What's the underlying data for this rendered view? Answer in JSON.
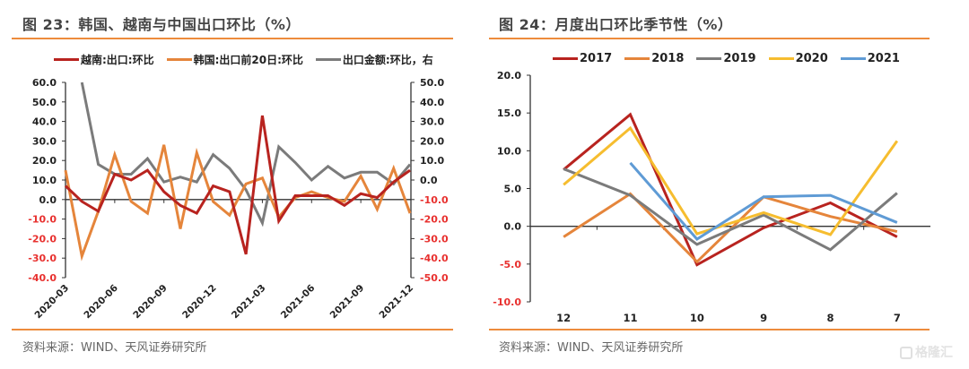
{
  "left": {
    "title": "图 23：韩国、越南与中国出口环比（%）",
    "source": "资料来源：WIND、天风证券研究所"
  },
  "right": {
    "title": "图 24：月度出口环比季节性（%）",
    "source": "资料来源：WIND、天风证券研究所"
  },
  "watermark": {
    "icon": "gelonghui-logo-icon",
    "text": "格隆汇"
  },
  "chart_data": [
    {
      "type": "line",
      "title": "图 23：韩国、越南与中国出口环比（%）",
      "xlabel": "",
      "ylabel": "",
      "x": [
        "2020-03",
        "2020-04",
        "2020-05",
        "2020-06",
        "2020-07",
        "2020-08",
        "2020-09",
        "2020-10",
        "2020-11",
        "2020-12",
        "2021-01",
        "2021-02",
        "2021-03",
        "2021-04",
        "2021-05",
        "2021-06",
        "2021-07",
        "2021-08",
        "2021-09",
        "2021-10",
        "2021-11",
        "2021-12"
      ],
      "x_tick_labels": [
        "2020-03",
        "2020-06",
        "2020-09",
        "2020-12",
        "2021-03",
        "2021-06",
        "2021-09",
        "2021-12"
      ],
      "ylim": [
        -40,
        60
      ],
      "y_ticks": [
        60,
        50,
        40,
        30,
        20,
        10,
        0,
        -10,
        -20,
        -30,
        -40
      ],
      "y_tick_labels": [
        "60.0",
        "50.0",
        "40.0",
        "30.0",
        "20.0",
        "10.0",
        "0.0",
        "-10.0",
        "-20.0",
        "-30.0",
        "-40.0"
      ],
      "y2lim": [
        -50,
        50
      ],
      "y2_ticks": [
        50,
        40,
        30,
        20,
        10,
        0,
        -10,
        -20,
        -30,
        -40,
        -50
      ],
      "y2_tick_labels": [
        "50.0",
        "40.0",
        "30.0",
        "20.0",
        "10.0",
        "0.0",
        "-10.0",
        "-20.0",
        "-30.0",
        "-40.0",
        "-50.0"
      ],
      "negative_tick_color": "#E8312F",
      "grid": false,
      "legend_position": "top",
      "series": [
        {
          "name": "越南:出口:环比",
          "color": "#B8231F",
          "axis": "left",
          "values": [
            7,
            -1,
            -6,
            13,
            10,
            15,
            4,
            -3,
            -7,
            7,
            4,
            -28,
            43,
            -11,
            2,
            2,
            2,
            -3,
            3,
            1,
            9,
            15
          ]
        },
        {
          "name": "韩国:出口前20日:环比",
          "color": "#E5853B",
          "axis": "left",
          "values": [
            15,
            -29,
            -6,
            23,
            -1,
            -7,
            28,
            -15,
            24,
            -1,
            -8,
            8,
            11,
            -9,
            1,
            4,
            1,
            -1,
            12,
            -5,
            16,
            -7
          ]
        },
        {
          "name": "出口金额:环比，右",
          "color": "#7B7B7B",
          "axis": "right",
          "values": [
            null,
            50,
            8,
            3,
            3,
            11,
            -1,
            1.5,
            -1,
            13,
            6,
            -5,
            -22,
            17,
            9,
            0,
            7,
            1,
            4,
            4,
            -2,
            8
          ]
        }
      ]
    },
    {
      "type": "line",
      "title": "图 24：月度出口环比季节性（%）",
      "xlabel": "",
      "ylabel": "",
      "categories": [
        "12",
        "11",
        "10",
        "9",
        "8",
        "7"
      ],
      "ylim": [
        -10,
        20
      ],
      "y_ticks": [
        20,
        15,
        10,
        5,
        0,
        -5,
        -10
      ],
      "y_tick_labels": [
        "20.0",
        "15.0",
        "10.0",
        "5.0",
        "0.0",
        "-5.0",
        "-10.0"
      ],
      "negative_tick_color": "#E8312F",
      "grid": false,
      "legend_position": "top",
      "series": [
        {
          "name": "2017",
          "color": "#B8231F",
          "values": [
            7.5,
            14.8,
            -5.1,
            -0.2,
            3.1,
            -1.4
          ]
        },
        {
          "name": "2018",
          "color": "#E5853B",
          "values": [
            -1.4,
            4.3,
            -4.7,
            3.9,
            1.3,
            -0.7
          ]
        },
        {
          "name": "2019",
          "color": "#7B7B7B",
          "values": [
            7.6,
            4.1,
            -2.4,
            1.5,
            -3.1,
            4.4
          ]
        },
        {
          "name": "2020",
          "color": "#F6BD2F",
          "values": [
            5.5,
            13.0,
            -1.0,
            1.8,
            -1.1,
            11.3
          ]
        },
        {
          "name": "2021",
          "color": "#5F9BD5",
          "values": [
            null,
            8.4,
            -1.7,
            3.9,
            4.1,
            0.5
          ]
        }
      ]
    }
  ]
}
